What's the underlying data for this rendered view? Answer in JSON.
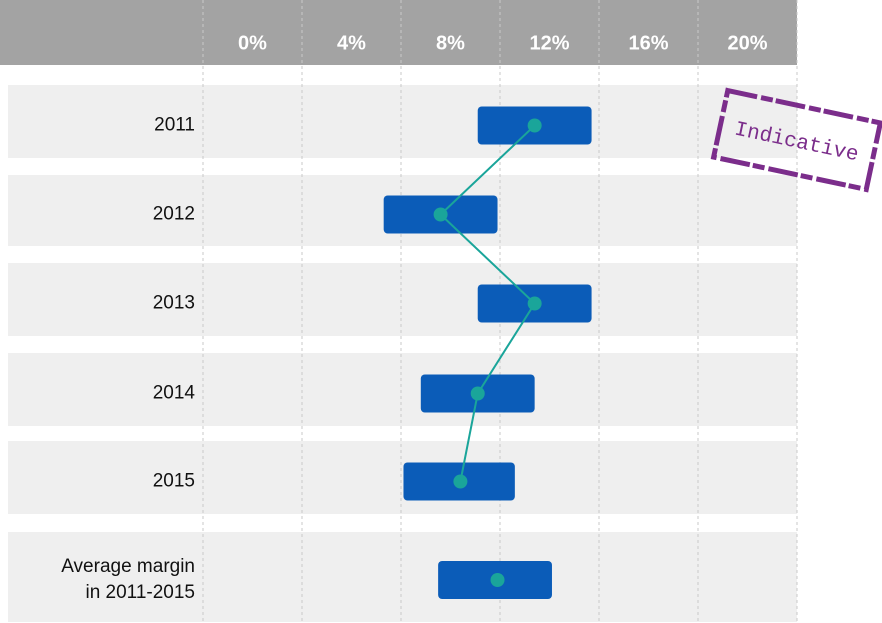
{
  "chart_data": {
    "type": "floating-bar",
    "xticks": [
      {
        "value": 0,
        "label": "0%"
      },
      {
        "value": 4,
        "label": "4%"
      },
      {
        "value": 8,
        "label": "8%"
      },
      {
        "value": 12,
        "label": "12%"
      },
      {
        "value": 16,
        "label": "16%"
      },
      {
        "value": 20,
        "label": "20%"
      }
    ],
    "xlim": [
      -2,
      22
    ],
    "categories": [
      "2011",
      "2012",
      "2013",
      "2014",
      "2015"
    ],
    "low": [
      9.1,
      5.3,
      9.1,
      6.8,
      6.1
    ],
    "high": [
      13.7,
      9.9,
      13.7,
      11.4,
      10.6
    ],
    "values": [
      11.4,
      7.6,
      11.4,
      9.1,
      8.4
    ],
    "average": {
      "label": [
        "Average margin",
        "in 2011-2015"
      ],
      "low": 7.5,
      "high": 12.1,
      "value": 9.9
    },
    "bar_color": "#0b5cb8",
    "point_color": "#1aa59a",
    "stamp": "Indicative"
  }
}
